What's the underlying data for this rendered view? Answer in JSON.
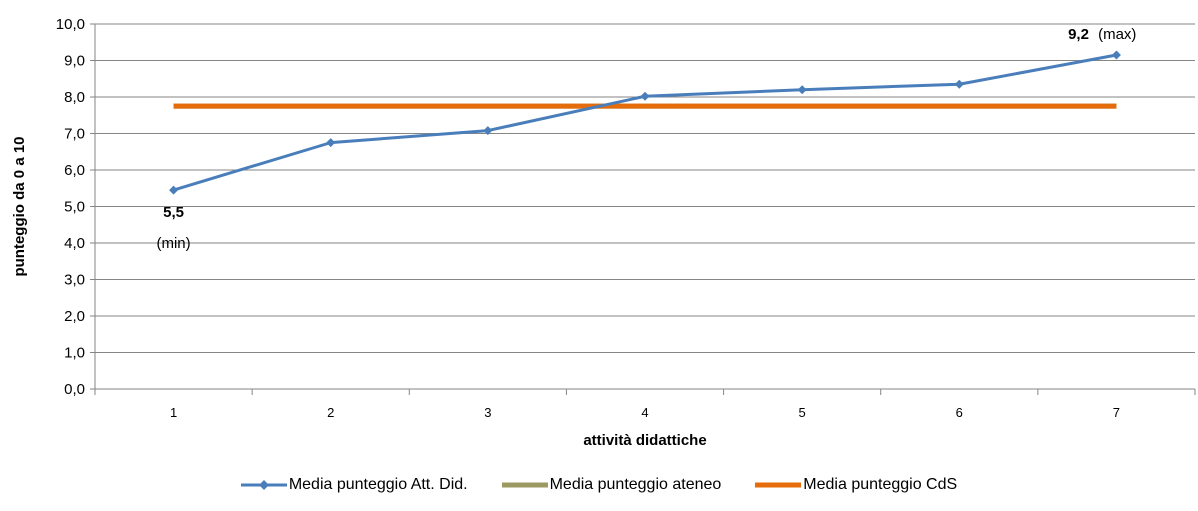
{
  "chart_data": {
    "type": "line",
    "title": "",
    "xlabel": "attività didattiche",
    "ylabel": "punteggio da 0 a 10",
    "categories": [
      "1",
      "2",
      "3",
      "4",
      "5",
      "6",
      "7"
    ],
    "ylim": [
      0,
      10
    ],
    "yticks": [
      "0,0",
      "1,0",
      "2,0",
      "3,0",
      "4,0",
      "5,0",
      "6,0",
      "7,0",
      "8,0",
      "9,0",
      "10,0"
    ],
    "grid": true,
    "legend_position": "bottom",
    "series": [
      {
        "name": "Media punteggio Att. Did.",
        "color": "#4a7ebb",
        "marker": "diamond",
        "values": [
          5.45,
          6.75,
          7.08,
          8.02,
          8.2,
          8.35,
          9.15
        ]
      },
      {
        "name": "Media punteggio ateneo",
        "color": "#9c9a62",
        "marker": "none",
        "values": [
          7.75,
          7.75,
          7.75,
          7.75,
          7.75,
          7.75,
          7.75
        ]
      },
      {
        "name": "Media punteggio CdS",
        "color": "#e46c0a",
        "marker": "none",
        "values": [
          7.75,
          7.75,
          7.75,
          7.75,
          7.75,
          7.75,
          7.75
        ]
      }
    ],
    "annotations": {
      "min": {
        "value": "5,5",
        "note": "(min)"
      },
      "max": {
        "value": "9,2",
        "note": "(max)"
      }
    }
  }
}
